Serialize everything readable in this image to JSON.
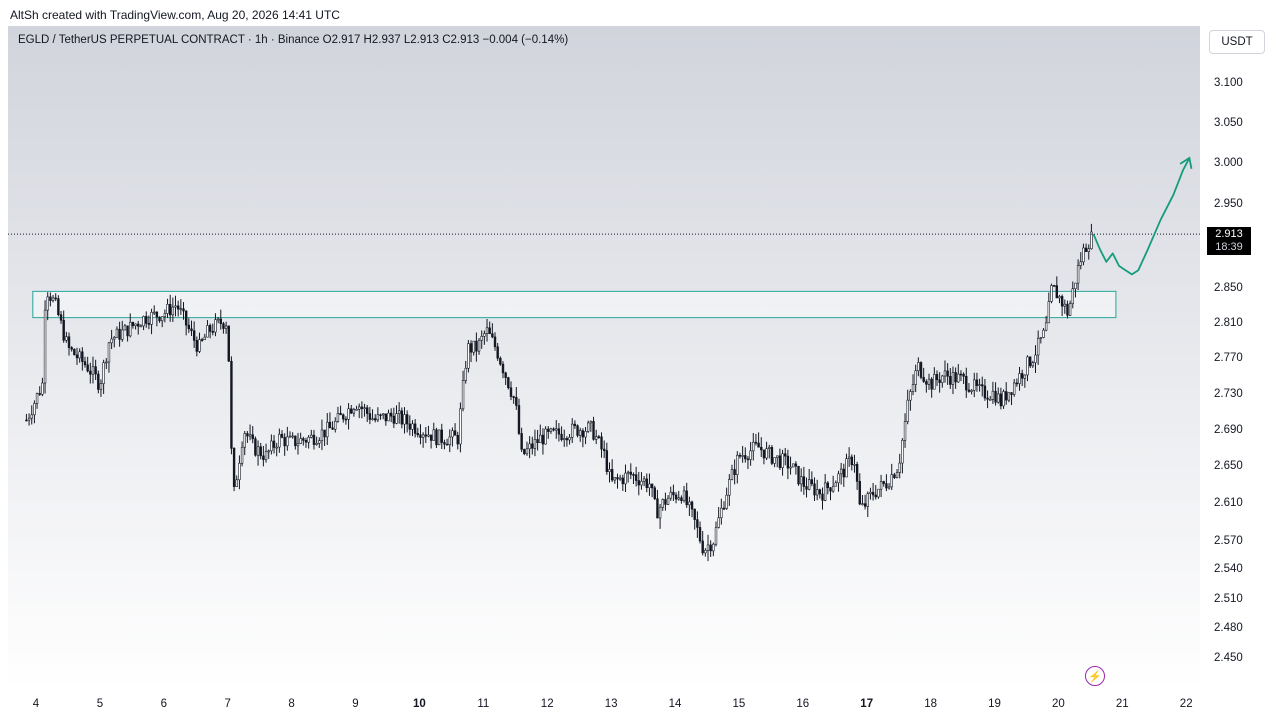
{
  "header": {
    "credit": "AltSh created with TradingView.com, Aug 20, 2026 14:41 UTC"
  },
  "legend": {
    "text": "EGLD / TetherUS PERPETUAL CONTRACT · 1h · Binance  O2.917  H2.937  L2.913  C2.913  −0.004 (−0.14%)"
  },
  "toolbar": {
    "currency_label": "USDT"
  },
  "price_badge": {
    "price": "2.913",
    "countdown": "18:39"
  },
  "icons": {
    "bolt": "lightning-bolt-icon"
  },
  "colors": {
    "candle": "#131722",
    "zone_border": "#26a69a",
    "projection": "#149c7c",
    "bolt": "#9c27b0",
    "badge_bg": "#000000",
    "background_top": "#d1d4dc",
    "background_bottom": "#ffffff"
  },
  "chart_data": {
    "type": "candlestick",
    "symbol": "EGLD / TetherUS PERPETUAL CONTRACT",
    "interval": "1h",
    "exchange": "Binance",
    "last_price": 2.913,
    "ohlc": {
      "open": 2.917,
      "high": 2.937,
      "low": 2.913,
      "close": 2.913
    },
    "yticks": [
      "3.100",
      "3.050",
      "3.000",
      "2.950",
      "2.850",
      "2.810",
      "2.770",
      "2.730",
      "2.690",
      "2.650",
      "2.610",
      "2.570",
      "2.540",
      "2.510",
      "2.480",
      "2.450"
    ],
    "xticks": [
      {
        "label": "4",
        "bold": false
      },
      {
        "label": "5",
        "bold": false
      },
      {
        "label": "6",
        "bold": false
      },
      {
        "label": "7",
        "bold": false
      },
      {
        "label": "8",
        "bold": false
      },
      {
        "label": "9",
        "bold": false
      },
      {
        "label": "10",
        "bold": true
      },
      {
        "label": "11",
        "bold": false
      },
      {
        "label": "12",
        "bold": false
      },
      {
        "label": "13",
        "bold": false
      },
      {
        "label": "14",
        "bold": false
      },
      {
        "label": "15",
        "bold": false
      },
      {
        "label": "16",
        "bold": false
      },
      {
        "label": "17",
        "bold": true
      },
      {
        "label": "18",
        "bold": false
      },
      {
        "label": "19",
        "bold": false
      },
      {
        "label": "20",
        "bold": false
      },
      {
        "label": "21",
        "bold": false
      },
      {
        "label": "22",
        "bold": false
      }
    ],
    "price_path": [
      [
        3.85,
        2.7
      ],
      [
        4.1,
        2.74
      ],
      [
        4.15,
        2.85
      ],
      [
        4.3,
        2.83
      ],
      [
        4.5,
        2.78
      ],
      [
        4.8,
        2.76
      ],
      [
        5.0,
        2.74
      ],
      [
        5.15,
        2.79
      ],
      [
        5.4,
        2.8
      ],
      [
        5.7,
        2.815
      ],
      [
        6.0,
        2.82
      ],
      [
        6.2,
        2.83
      ],
      [
        6.4,
        2.8
      ],
      [
        6.55,
        2.78
      ],
      [
        6.7,
        2.8
      ],
      [
        6.9,
        2.81
      ],
      [
        7.0,
        2.81
      ],
      [
        7.08,
        2.61
      ],
      [
        7.25,
        2.69
      ],
      [
        7.4,
        2.67
      ],
      [
        7.6,
        2.66
      ],
      [
        7.8,
        2.68
      ],
      [
        8.0,
        2.675
      ],
      [
        8.3,
        2.68
      ],
      [
        8.6,
        2.69
      ],
      [
        9.0,
        2.72
      ],
      [
        9.3,
        2.7
      ],
      [
        9.6,
        2.705
      ],
      [
        10.0,
        2.69
      ],
      [
        10.3,
        2.68
      ],
      [
        10.6,
        2.68
      ],
      [
        10.75,
        2.78
      ],
      [
        10.9,
        2.78
      ],
      [
        11.05,
        2.8
      ],
      [
        11.2,
        2.78
      ],
      [
        11.5,
        2.72
      ],
      [
        11.6,
        2.66
      ],
      [
        11.9,
        2.68
      ],
      [
        12.2,
        2.685
      ],
      [
        12.5,
        2.69
      ],
      [
        12.7,
        2.69
      ],
      [
        12.9,
        2.66
      ],
      [
        13.0,
        2.63
      ],
      [
        13.3,
        2.64
      ],
      [
        13.6,
        2.63
      ],
      [
        13.7,
        2.6
      ],
      [
        13.9,
        2.615
      ],
      [
        14.1,
        2.62
      ],
      [
        14.3,
        2.59
      ],
      [
        14.45,
        2.56
      ],
      [
        14.6,
        2.57
      ],
      [
        14.8,
        2.62
      ],
      [
        15.0,
        2.66
      ],
      [
        15.3,
        2.67
      ],
      [
        15.5,
        2.66
      ],
      [
        15.8,
        2.65
      ],
      [
        16.0,
        2.63
      ],
      [
        16.3,
        2.62
      ],
      [
        16.6,
        2.64
      ],
      [
        16.8,
        2.66
      ],
      [
        16.9,
        2.6
      ],
      [
        17.1,
        2.62
      ],
      [
        17.3,
        2.63
      ],
      [
        17.5,
        2.65
      ],
      [
        17.65,
        2.72
      ],
      [
        17.8,
        2.76
      ],
      [
        18.0,
        2.74
      ],
      [
        18.2,
        2.75
      ],
      [
        18.5,
        2.745
      ],
      [
        18.8,
        2.73
      ],
      [
        19.0,
        2.73
      ],
      [
        19.1,
        2.72
      ],
      [
        19.3,
        2.74
      ],
      [
        19.6,
        2.77
      ],
      [
        19.8,
        2.8
      ],
      [
        19.9,
        2.85
      ],
      [
        20.0,
        2.84
      ],
      [
        20.15,
        2.82
      ],
      [
        20.3,
        2.87
      ],
      [
        20.4,
        2.895
      ],
      [
        20.55,
        2.913
      ]
    ],
    "annotations": [
      {
        "type": "rectangle",
        "label": "",
        "x": [
          3.95,
          20.9
        ],
        "y": [
          2.815,
          2.845
        ]
      },
      {
        "type": "horizontal_line",
        "style": "dotted",
        "y": 2.913
      },
      {
        "type": "projection_path",
        "points": [
          [
            20.55,
            2.913
          ],
          [
            20.65,
            2.895
          ],
          [
            20.75,
            2.88
          ],
          [
            20.85,
            2.89
          ],
          [
            20.95,
            2.875
          ],
          [
            21.05,
            2.87
          ],
          [
            21.15,
            2.865
          ],
          [
            21.25,
            2.87
          ],
          [
            21.4,
            2.895
          ],
          [
            21.6,
            2.93
          ],
          [
            21.8,
            2.96
          ],
          [
            21.95,
            2.99
          ],
          [
            22.05,
            3.005
          ]
        ]
      }
    ]
  }
}
